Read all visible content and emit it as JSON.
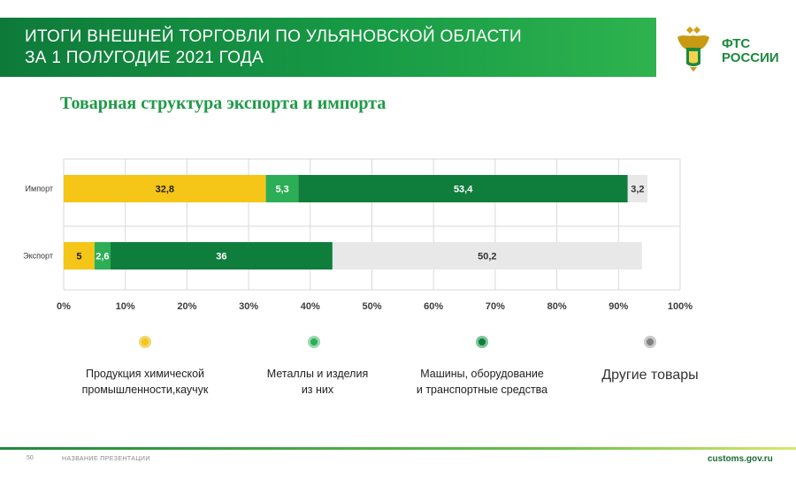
{
  "header": {
    "title_line1": "ИТОГИ ВНЕШНЕЙ ТОРГОВЛИ ПО УЛЬЯНОВСКОЙ ОБЛАСТИ",
    "title_line2": "ЗА 1 ПОЛУГОДИЕ 2021 ГОДА",
    "color": "#179a45"
  },
  "logo": {
    "line1": "ФТС",
    "line2": "РОССИИ",
    "emblem_icon": "double-headed-eagle-emblem"
  },
  "subtitle": "Товарная структура экспорта и импорта",
  "chart_data": {
    "type": "bar",
    "orientation": "horizontal",
    "stacked": "percent",
    "categories": [
      "Импорт",
      "Экспорт"
    ],
    "series": [
      {
        "name": "Продукция химической промышленности,каучук",
        "values": [
          32.8,
          5
        ],
        "color": "#f5c518",
        "label_color": "#222222"
      },
      {
        "name": "Металлы и изделия из них",
        "values": [
          5.3,
          2.6
        ],
        "color": "#2cae56",
        "label_color": "#ffffff"
      },
      {
        "name": "Машины, оборудование и транспортные средства",
        "values": [
          53.4,
          36
        ],
        "color": "#0f7e3c",
        "label_color": "#ffffff"
      },
      {
        "name": "Другие товары",
        "values": [
          3.2,
          50.2
        ],
        "color": "#e8e8e8",
        "label_color": "#333333"
      }
    ],
    "value_labels": [
      [
        "32,8",
        "5,3",
        "53,4",
        "3,2"
      ],
      [
        "5",
        "2,6",
        "36",
        "50,2"
      ]
    ],
    "xlim": [
      0,
      100
    ],
    "ticks": [
      "0%",
      "10%",
      "20%",
      "30%",
      "40%",
      "50%",
      "60%",
      "70%",
      "80%",
      "90%",
      "100%"
    ],
    "grid": true,
    "legend_position": "bottom"
  },
  "legend": [
    {
      "line1": "Продукция химической",
      "line2": "промышленности,каучук",
      "color": "#f5c518",
      "border": "#f0d870"
    },
    {
      "line1": "Металлы и изделия",
      "line2": "из них",
      "color": "#2cae56",
      "border": "#9ad8ad"
    },
    {
      "line1": "Машины, оборудование",
      "line2": "и транспортные средства",
      "color": "#0f7e3c",
      "border": "#7fc49b"
    },
    {
      "line1": "Другие товары",
      "line2": "",
      "color": "#808080",
      "border": "#c8c8c8"
    }
  ],
  "footer": {
    "page": "50",
    "presentation": "НАЗВАНИЕ ПРЕЗЕНТАЦИИ",
    "url": "customs.gov.ru"
  }
}
